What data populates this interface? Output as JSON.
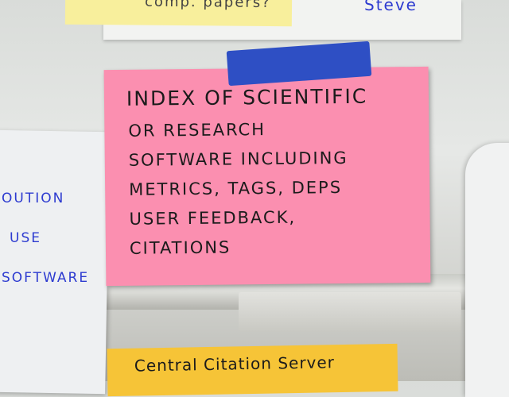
{
  "top_note": {
    "text": "comp. papers?"
  },
  "top_right": {
    "text": "Steve"
  },
  "pink_note": {
    "lines": [
      "INDEX OF SCIENTIFIC",
      "OR RESEARCH",
      "SOFTWARE INCLUDING",
      "METRICS, TAGS, DEPS",
      "USER FEEDBACK,",
      "CITATIONS"
    ]
  },
  "left_note": {
    "lines": [
      "OUTION",
      "USE",
      "SOFTWARE"
    ]
  },
  "bottom_note": {
    "text": "Central Citation Server"
  }
}
